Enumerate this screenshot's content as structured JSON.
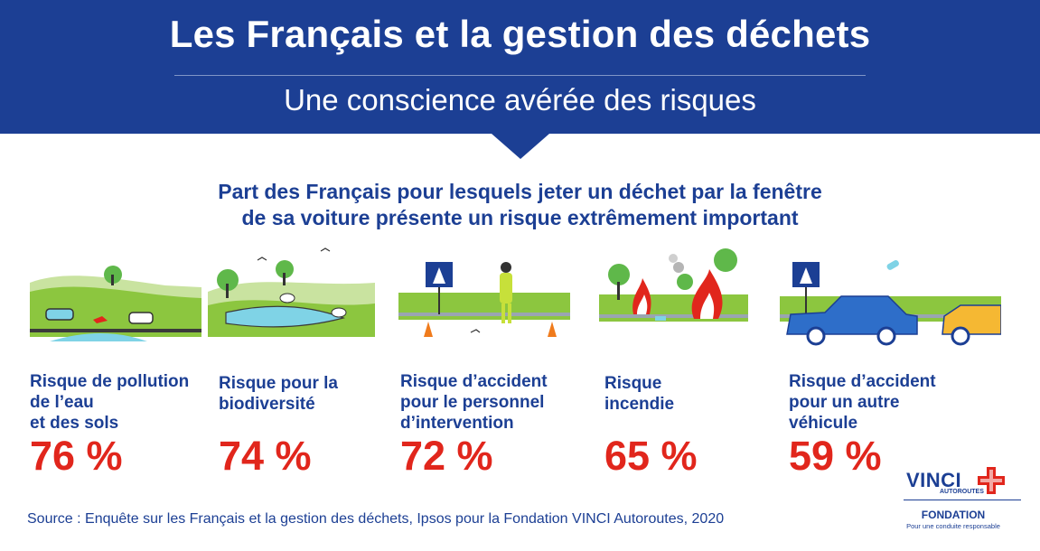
{
  "header": {
    "title": "Les Français et la gestion des déchets",
    "subtitle": "Une conscience avérée des risques"
  },
  "question": {
    "line1": "Part des Français pour lesquels jeter un déchet par la fenêtre",
    "line2": "de sa voiture présente un risque extrêmement important"
  },
  "chart_data": {
    "type": "table",
    "title": "Part des Français pour lesquels jeter un déchet par la fenêtre de sa voiture présente un risque extrêmement important",
    "categories": [
      "Risque de pollution de l’eau et des sols",
      "Risque pour la biodiversité",
      "Risque d’accident pour le personnel d’intervention",
      "Risque incendie",
      "Risque d’accident pour un autre véhicule"
    ],
    "values": [
      76,
      74,
      72,
      65,
      59
    ],
    "unit": "%"
  },
  "risks": [
    {
      "lines": [
        "Risque de pollution",
        "de l’eau",
        "et des sols"
      ],
      "value_label": "76 %"
    },
    {
      "lines": [
        "Risque pour la",
        "biodiversité",
        ""
      ],
      "value_label": "74 %"
    },
    {
      "lines": [
        "Risque d’accident",
        "pour le personnel",
        "d’intervention"
      ],
      "value_label": "72 %"
    },
    {
      "lines": [
        "Risque",
        "incendie",
        ""
      ],
      "value_label": "65 %"
    },
    {
      "lines": [
        "Risque d’accident",
        "pour un autre",
        "véhicule"
      ],
      "value_label": "59 %"
    }
  ],
  "source": "Source : Enquête sur les Français et la gestion des déchets, Ipsos pour la Fondation VINCI Autoroutes, 2020",
  "logo": {
    "brand": "VINCI",
    "sub": "AUTOROUTES",
    "foundation": "FONDATION",
    "tagline": "Pour une conduite responsable"
  },
  "colors": {
    "banner": "#1c3f94",
    "heading": "#1c3f94",
    "percent": "#e1261c",
    "grass": "#8cc63f",
    "water": "#7fd3e6"
  }
}
